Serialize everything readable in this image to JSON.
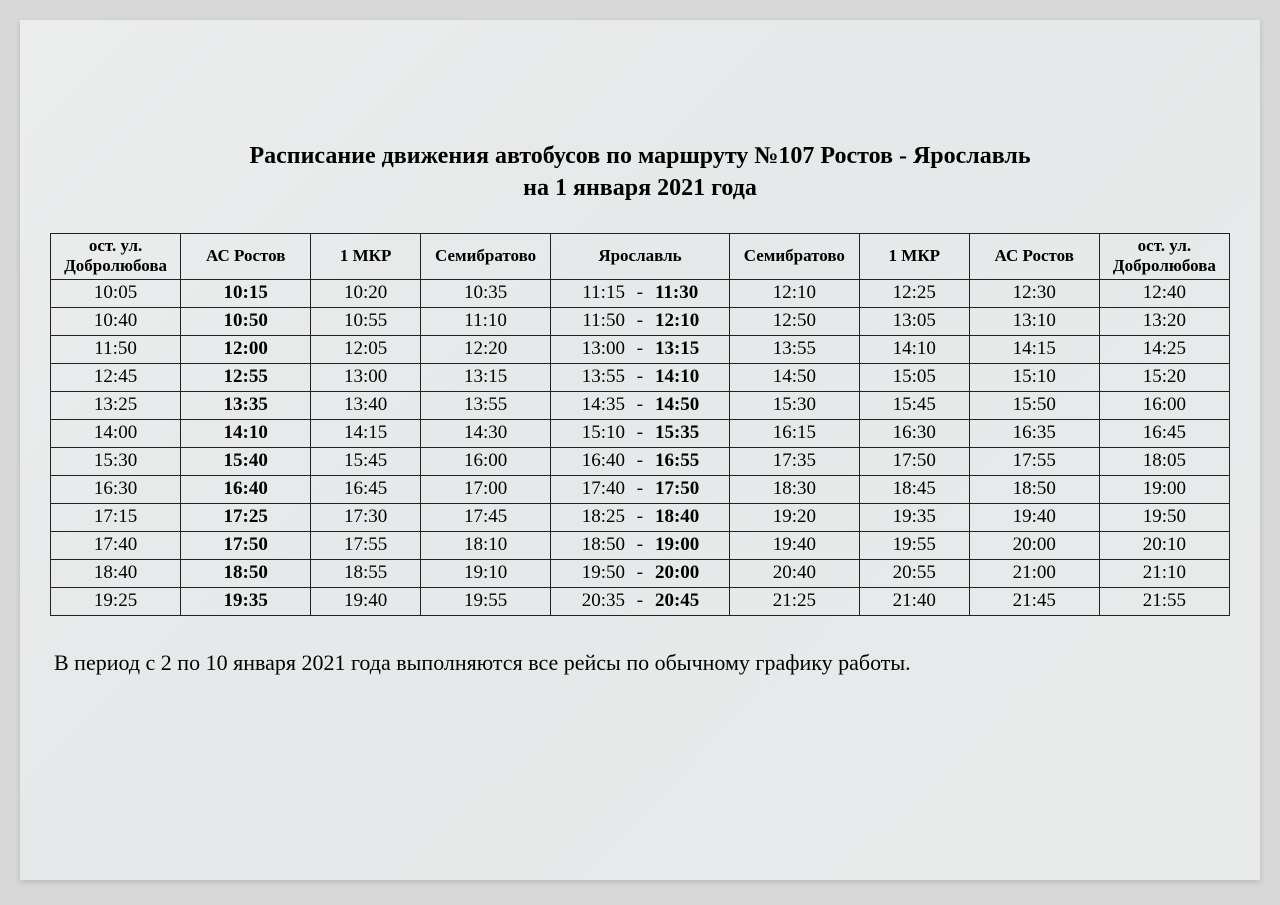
{
  "title_line1": "Расписание движения автобусов по маршруту №107 Ростов - Ярославль",
  "title_line2": "на 1 января 2021 года",
  "footnote": "В период с 2 по 10 января 2021 года выполняются все рейсы по обычному графику работы.",
  "table": {
    "columns": [
      "ост. ул. Добролюбова",
      "АС Ростов",
      "1 МКР",
      "Семибратово",
      "Ярославль",
      "Семибратово",
      "1 МКР",
      "АС Ростов",
      "ост. ул. Добролюбова"
    ],
    "bold_columns": [
      1
    ],
    "yaroslavl_column_index": 4,
    "rows": [
      [
        "10:05",
        "10:15",
        "10:20",
        "10:35",
        {
          "arr": "11:15",
          "dep": "11:30"
        },
        "12:10",
        "12:25",
        "12:30",
        "12:40"
      ],
      [
        "10:40",
        "10:50",
        "10:55",
        "11:10",
        {
          "arr": "11:50",
          "dep": "12:10"
        },
        "12:50",
        "13:05",
        "13:10",
        "13:20"
      ],
      [
        "11:50",
        "12:00",
        "12:05",
        "12:20",
        {
          "arr": "13:00",
          "dep": "13:15"
        },
        "13:55",
        "14:10",
        "14:15",
        "14:25"
      ],
      [
        "12:45",
        "12:55",
        "13:00",
        "13:15",
        {
          "arr": "13:55",
          "dep": "14:10"
        },
        "14:50",
        "15:05",
        "15:10",
        "15:20"
      ],
      [
        "13:25",
        "13:35",
        "13:40",
        "13:55",
        {
          "arr": "14:35",
          "dep": "14:50"
        },
        "15:30",
        "15:45",
        "15:50",
        "16:00"
      ],
      [
        "14:00",
        "14:10",
        "14:15",
        "14:30",
        {
          "arr": "15:10",
          "dep": "15:35"
        },
        "16:15",
        "16:30",
        "16:35",
        "16:45"
      ],
      [
        "15:30",
        "15:40",
        "15:45",
        "16:00",
        {
          "arr": "16:40",
          "dep": "16:55"
        },
        "17:35",
        "17:50",
        "17:55",
        "18:05"
      ],
      [
        "16:30",
        "16:40",
        "16:45",
        "17:00",
        {
          "arr": "17:40",
          "dep": "17:50"
        },
        "18:30",
        "18:45",
        "18:50",
        "19:00"
      ],
      [
        "17:15",
        "17:25",
        "17:30",
        "17:45",
        {
          "arr": "18:25",
          "dep": "18:40"
        },
        "19:20",
        "19:35",
        "19:40",
        "19:50"
      ],
      [
        "17:40",
        "17:50",
        "17:55",
        "18:10",
        {
          "arr": "18:50",
          "dep": "19:00"
        },
        "19:40",
        "19:55",
        "20:00",
        "20:10"
      ],
      [
        "18:40",
        "18:50",
        "18:55",
        "19:10",
        {
          "arr": "19:50",
          "dep": "20:00"
        },
        "20:40",
        "20:55",
        "21:00",
        "21:10"
      ],
      [
        "19:25",
        "19:35",
        "19:40",
        "19:55",
        {
          "arr": "20:35",
          "dep": "20:45"
        },
        "21:25",
        "21:40",
        "21:45",
        "21:55"
      ]
    ],
    "border_color": "#222222",
    "text_color": "#000000",
    "header_fontsize_pt": 13,
    "body_fontsize_pt": 14,
    "font_family": "Times New Roman"
  },
  "page_bg_color": "#e8eaea",
  "outer_bg_color": "#d8d8d8"
}
